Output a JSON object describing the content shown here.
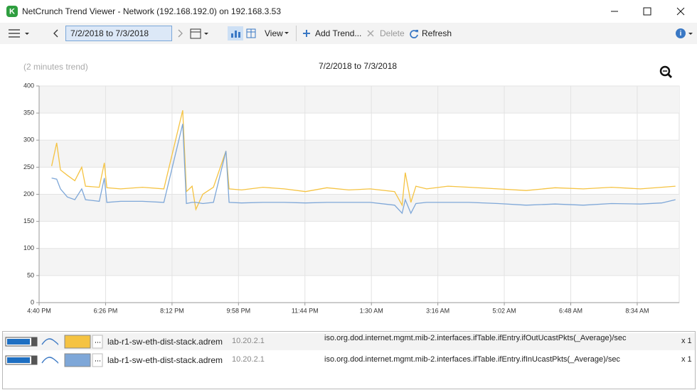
{
  "window": {
    "title": "NetCrunch Trend Viewer - Network (192.168.192.0) on 192.168.3.53"
  },
  "toolbar": {
    "date_range": "7/2/2018 to 7/3/2018",
    "view": "View",
    "add_trend": "Add Trend...",
    "delete": "Delete",
    "refresh": "Refresh"
  },
  "chart_data": {
    "type": "line",
    "title": "7/2/2018 to 7/3/2018",
    "subtitle": "(2 minutes trend)",
    "x": [
      20,
      28,
      34,
      45,
      57,
      68,
      74,
      96,
      104,
      108,
      130,
      165,
      199,
      229,
      235,
      244,
      250,
      261,
      278,
      298,
      303,
      323,
      357,
      391,
      425,
      459,
      494,
      528,
      567,
      579,
      584,
      593,
      601,
      618,
      652,
      686,
      732,
      777,
      823,
      868,
      913,
      959,
      993,
      1015
    ],
    "series": [
      {
        "name": "iso.org.dod.internet.mgmt.mib-2.interfaces.ifTable.ifEntry.ifOutUcastPkts(_Average)/sec",
        "color": "#f5c342",
        "values": [
          252,
          295,
          245,
          235,
          225,
          250,
          215,
          213,
          258,
          212,
          210,
          213,
          210,
          355,
          205,
          215,
          172,
          200,
          213,
          280,
          210,
          208,
          213,
          210,
          205,
          212,
          208,
          210,
          205,
          180,
          240,
          185,
          215,
          210,
          215,
          213,
          210,
          207,
          212,
          210,
          213,
          210,
          213,
          215
        ]
      },
      {
        "name": "iso.org.dod.internet.mgmt.mib-2.interfaces.ifTable.ifEntry.ifInUcastPkts(_Average)/sec",
        "color": "#7ea7d8",
        "values": [
          230,
          228,
          210,
          195,
          190,
          210,
          190,
          187,
          230,
          185,
          187,
          187,
          185,
          330,
          183,
          185,
          185,
          183,
          185,
          280,
          185,
          184,
          185,
          185,
          184,
          185,
          185,
          185,
          180,
          165,
          190,
          165,
          183,
          185,
          185,
          185,
          183,
          180,
          182,
          180,
          183,
          182,
          184,
          190
        ]
      }
    ],
    "xlim": [
      0,
      1021
    ],
    "xticks": [
      {
        "value": 0,
        "label": "4:40 PM"
      },
      {
        "value": 106,
        "label": "6:26 PM"
      },
      {
        "value": 212,
        "label": "8:12 PM"
      },
      {
        "value": 318,
        "label": "9:58 PM"
      },
      {
        "value": 424,
        "label": "11:44 PM"
      },
      {
        "value": 530,
        "label": "1:30 AM"
      },
      {
        "value": 636,
        "label": "3:16 AM"
      },
      {
        "value": 742,
        "label": "5:02 AM"
      },
      {
        "value": 848,
        "label": "6:48 AM"
      },
      {
        "value": 954,
        "label": "8:34 AM"
      }
    ],
    "ylim": [
      0,
      400
    ],
    "yticks": [
      0,
      50,
      100,
      150,
      200,
      250,
      300,
      350,
      400
    ],
    "grid": true
  },
  "legend": {
    "rows": [
      {
        "host": "lab-r1-sw-eth-dist-stack.adrem",
        "ip": "10.20.2.1",
        "scale": "x 1"
      },
      {
        "host": "lab-r1-sw-eth-dist-stack.adrem",
        "ip": "10.20.2.1",
        "scale": "x 1"
      }
    ]
  }
}
